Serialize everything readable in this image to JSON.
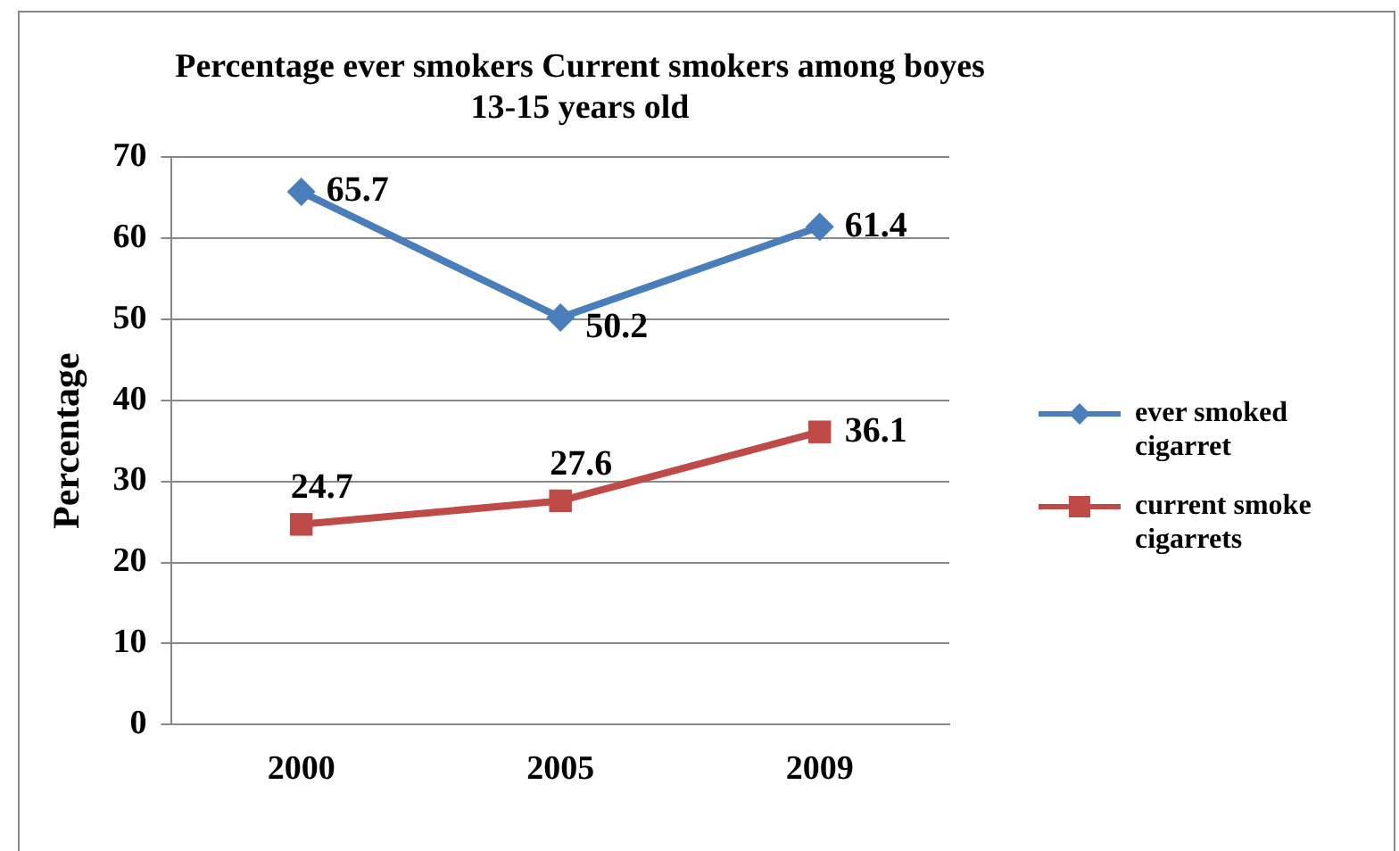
{
  "chart_data": {
    "type": "line",
    "title": "Percentage ever smokers Current smokers among boyes 13-15 years old",
    "ylabel": "Percentage",
    "categories": [
      "2000",
      "2005",
      "2009"
    ],
    "series": [
      {
        "name": "ever smoked cigarret",
        "color": "#4a7ebb",
        "values": [
          65.7,
          50.2,
          61.4
        ],
        "marker": "diamond"
      },
      {
        "name": "current smoke cigarrets",
        "color": "#be4b48",
        "values": [
          24.7,
          27.6,
          36.1
        ],
        "marker": "square"
      }
    ],
    "ylim": [
      0,
      70
    ],
    "yticks": [
      0,
      10,
      20,
      30,
      40,
      50,
      60,
      70
    ],
    "grid": "y",
    "legend": "right",
    "data_labels": true,
    "line_style": "solid"
  }
}
